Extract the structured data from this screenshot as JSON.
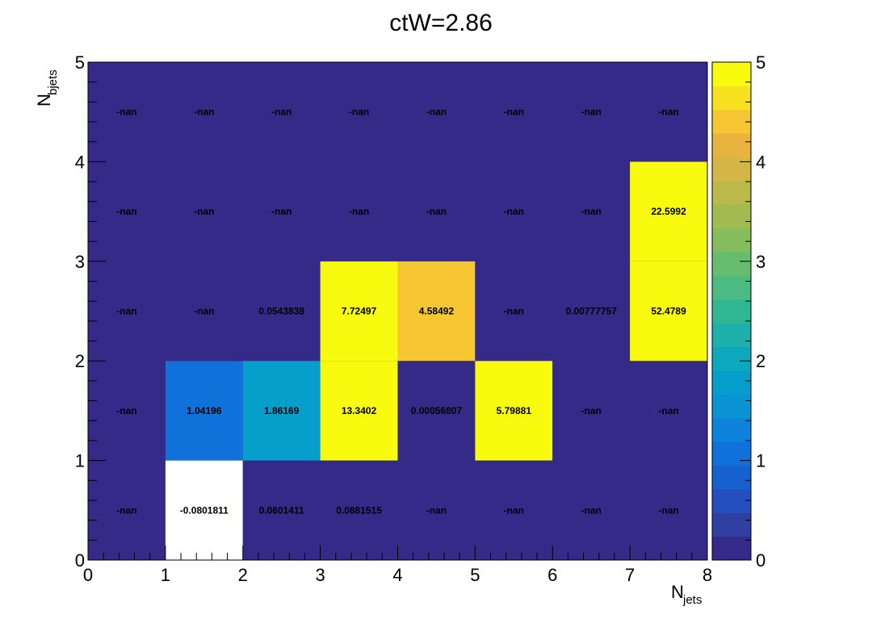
{
  "chart_data": {
    "type": "heatmap",
    "title": "ctW=2.86",
    "xlabel": {
      "main": "N",
      "sub": "jets"
    },
    "ylabel": {
      "main": "N",
      "sub": "bjets"
    },
    "xlim": [
      0,
      8
    ],
    "ylim": [
      0,
      5
    ],
    "x_ticks": [
      "0",
      "1",
      "2",
      "3",
      "4",
      "5",
      "6",
      "7",
      "8"
    ],
    "y_ticks": [
      "0",
      "1",
      "2",
      "3",
      "4",
      "5"
    ],
    "colorbar": {
      "min": 0,
      "max": 5,
      "ticks": [
        "0",
        "1",
        "2",
        "3",
        "4",
        "5"
      ],
      "palette": "viridis-like"
    },
    "cells": [
      {
        "x": 0,
        "y": 0,
        "value": null,
        "label": "-nan"
      },
      {
        "x": 1,
        "y": 0,
        "value": -0.0801811,
        "label": "-0.0801811"
      },
      {
        "x": 2,
        "y": 0,
        "value": 0.0601411,
        "label": "0.0601411"
      },
      {
        "x": 3,
        "y": 0,
        "value": 0.0881515,
        "label": "0.0881515"
      },
      {
        "x": 4,
        "y": 0,
        "value": null,
        "label": "-nan"
      },
      {
        "x": 5,
        "y": 0,
        "value": null,
        "label": "-nan"
      },
      {
        "x": 6,
        "y": 0,
        "value": null,
        "label": "-nan"
      },
      {
        "x": 7,
        "y": 0,
        "value": null,
        "label": "-nan"
      },
      {
        "x": 0,
        "y": 1,
        "value": null,
        "label": "-nan"
      },
      {
        "x": 1,
        "y": 1,
        "value": 1.04196,
        "label": "1.04196"
      },
      {
        "x": 2,
        "y": 1,
        "value": 1.86169,
        "label": "1.86169"
      },
      {
        "x": 3,
        "y": 1,
        "value": 13.3402,
        "label": "13.3402"
      },
      {
        "x": 4,
        "y": 1,
        "value": 0.00056807,
        "label": "0.00056807"
      },
      {
        "x": 5,
        "y": 1,
        "value": 5.79881,
        "label": "5.79881"
      },
      {
        "x": 6,
        "y": 1,
        "value": null,
        "label": "-nan"
      },
      {
        "x": 7,
        "y": 1,
        "value": null,
        "label": "-nan"
      },
      {
        "x": 0,
        "y": 2,
        "value": null,
        "label": "-nan"
      },
      {
        "x": 1,
        "y": 2,
        "value": null,
        "label": "-nan"
      },
      {
        "x": 2,
        "y": 2,
        "value": 0.0543838,
        "label": "0.0543838"
      },
      {
        "x": 3,
        "y": 2,
        "value": 7.72497,
        "label": "7.72497"
      },
      {
        "x": 4,
        "y": 2,
        "value": 4.58492,
        "label": "4.58492"
      },
      {
        "x": 5,
        "y": 2,
        "value": null,
        "label": "-nan"
      },
      {
        "x": 6,
        "y": 2,
        "value": 0.00777757,
        "label": "0.00777757"
      },
      {
        "x": 7,
        "y": 2,
        "value": 52.4789,
        "label": "52.4789"
      },
      {
        "x": 0,
        "y": 3,
        "value": null,
        "label": "-nan"
      },
      {
        "x": 1,
        "y": 3,
        "value": null,
        "label": "-nan"
      },
      {
        "x": 2,
        "y": 3,
        "value": null,
        "label": "-nan"
      },
      {
        "x": 3,
        "y": 3,
        "value": null,
        "label": "-nan"
      },
      {
        "x": 4,
        "y": 3,
        "value": null,
        "label": "-nan"
      },
      {
        "x": 5,
        "y": 3,
        "value": null,
        "label": "-nan"
      },
      {
        "x": 6,
        "y": 3,
        "value": null,
        "label": "-nan"
      },
      {
        "x": 7,
        "y": 3,
        "value": 22.5992,
        "label": "22.5992"
      },
      {
        "x": 0,
        "y": 4,
        "value": null,
        "label": "-nan"
      },
      {
        "x": 1,
        "y": 4,
        "value": null,
        "label": "-nan"
      },
      {
        "x": 2,
        "y": 4,
        "value": null,
        "label": "-nan"
      },
      {
        "x": 3,
        "y": 4,
        "value": null,
        "label": "-nan"
      },
      {
        "x": 4,
        "y": 4,
        "value": null,
        "label": "-nan"
      },
      {
        "x": 5,
        "y": 4,
        "value": null,
        "label": "-nan"
      },
      {
        "x": 6,
        "y": 4,
        "value": null,
        "label": "-nan"
      },
      {
        "x": 7,
        "y": 4,
        "value": null,
        "label": "-nan"
      }
    ]
  }
}
